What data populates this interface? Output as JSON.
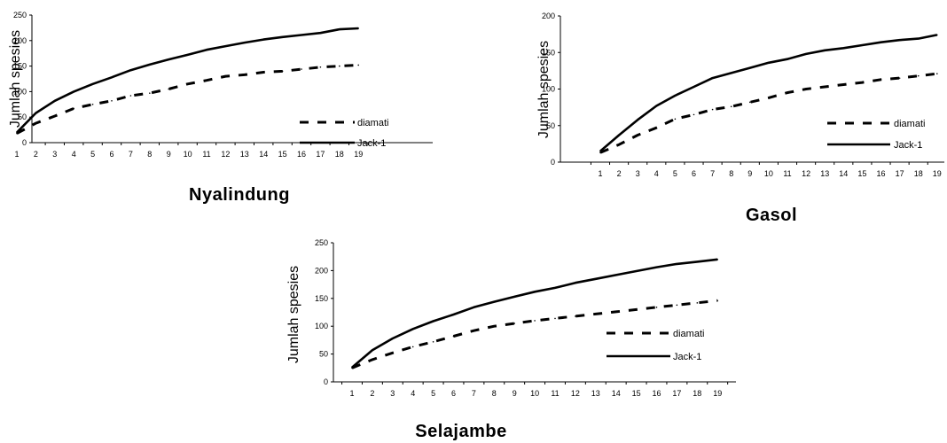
{
  "chart_data": [
    {
      "type": "line",
      "title": "Nyalindung",
      "ylabel": "Jumlah spesies",
      "xlabel": "",
      "x": [
        1,
        2,
        3,
        4,
        5,
        6,
        7,
        8,
        9,
        10,
        11,
        12,
        13,
        14,
        15,
        16,
        17,
        18,
        19
      ],
      "ylim": [
        0,
        250
      ],
      "yticks": [
        0,
        50,
        100,
        150,
        200,
        250
      ],
      "legend_position": "right",
      "series": [
        {
          "name": "diamati",
          "style": "dashed",
          "values": [
            18,
            38,
            52,
            67,
            75,
            82,
            92,
            97,
            105,
            115,
            122,
            130,
            133,
            138,
            140,
            144,
            148,
            150,
            152
          ]
        },
        {
          "name": "Jack-1",
          "style": "solid",
          "values": [
            20,
            58,
            82,
            100,
            115,
            128,
            142,
            153,
            163,
            172,
            182,
            189,
            196,
            202,
            207,
            211,
            215,
            222,
            224
          ]
        }
      ]
    },
    {
      "type": "line",
      "title": "Gasol",
      "ylabel": "Jumlah spesies",
      "xlabel": "",
      "x": [
        1,
        2,
        3,
        4,
        5,
        6,
        7,
        8,
        9,
        10,
        11,
        12,
        13,
        14,
        15,
        16,
        17,
        18,
        19
      ],
      "ylim": [
        0,
        200
      ],
      "yticks": [
        0,
        50,
        100,
        150,
        200
      ],
      "legend_position": "right",
      "series": [
        {
          "name": "diamati",
          "style": "dashed",
          "values": [
            13,
            24,
            37,
            47,
            59,
            65,
            72,
            76,
            82,
            88,
            95,
            100,
            103,
            106,
            109,
            113,
            115,
            118,
            121
          ]
        },
        {
          "name": "Jack-1",
          "style": "solid",
          "values": [
            15,
            37,
            58,
            77,
            91,
            103,
            115,
            122,
            129,
            136,
            141,
            148,
            153,
            156,
            160,
            164,
            167,
            169,
            174
          ]
        }
      ]
    },
    {
      "type": "line",
      "title": "Selajambe",
      "ylabel": "Jumlah spesies",
      "xlabel": "",
      "x": [
        1,
        2,
        3,
        4,
        5,
        6,
        7,
        8,
        9,
        10,
        11,
        12,
        13,
        14,
        15,
        16,
        17,
        18,
        19
      ],
      "ylim": [
        0,
        250
      ],
      "yticks": [
        0,
        50,
        100,
        150,
        200,
        250
      ],
      "legend_position": "right",
      "series": [
        {
          "name": "diamati",
          "style": "dashed",
          "values": [
            25,
            40,
            52,
            63,
            72,
            82,
            92,
            100,
            105,
            110,
            114,
            118,
            122,
            126,
            130,
            134,
            138,
            142,
            146
          ]
        },
        {
          "name": "Jack-1",
          "style": "solid",
          "values": [
            26,
            57,
            78,
            95,
            109,
            121,
            134,
            144,
            153,
            162,
            169,
            178,
            185,
            192,
            199,
            206,
            212,
            216,
            220
          ]
        }
      ]
    }
  ]
}
